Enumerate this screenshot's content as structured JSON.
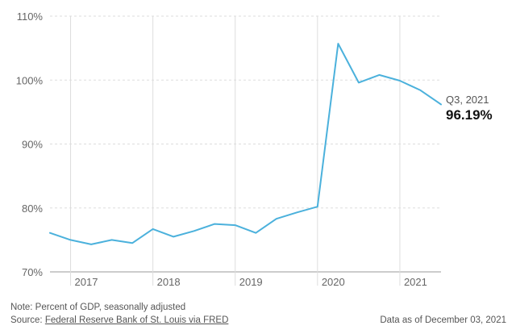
{
  "chart_data": {
    "type": "line",
    "ylim": [
      70,
      110
    ],
    "y_ticks": [
      {
        "value": 110,
        "label": "110%"
      },
      {
        "value": 100,
        "label": "100%"
      },
      {
        "value": 90,
        "label": "90%"
      },
      {
        "value": 80,
        "label": "80%"
      },
      {
        "value": 70,
        "label": "70%"
      }
    ],
    "x_ticks": [
      {
        "value": 2017,
        "label": "2017"
      },
      {
        "value": 2018,
        "label": "2018"
      },
      {
        "value": 2019,
        "label": "2019"
      },
      {
        "value": 2020,
        "label": "2020"
      },
      {
        "value": 2021,
        "label": "2021"
      }
    ],
    "xlim": [
      2016.75,
      2021.5
    ],
    "grid": true,
    "series": [
      {
        "color": "#4bb1dc",
        "points": [
          {
            "period": "2016 Q4",
            "x": 2016.75,
            "y": 76.1
          },
          {
            "period": "2017 Q1",
            "x": 2017.0,
            "y": 75.0
          },
          {
            "period": "2017 Q2",
            "x": 2017.25,
            "y": 74.3
          },
          {
            "period": "2017 Q3",
            "x": 2017.5,
            "y": 75.0
          },
          {
            "period": "2017 Q4",
            "x": 2017.75,
            "y": 74.5
          },
          {
            "period": "2018 Q1",
            "x": 2018.0,
            "y": 76.7
          },
          {
            "period": "2018 Q2",
            "x": 2018.25,
            "y": 75.5
          },
          {
            "period": "2018 Q3",
            "x": 2018.5,
            "y": 76.4
          },
          {
            "period": "2018 Q4",
            "x": 2018.75,
            "y": 77.5
          },
          {
            "period": "2019 Q1",
            "x": 2019.0,
            "y": 77.3
          },
          {
            "period": "2019 Q2",
            "x": 2019.25,
            "y": 76.1
          },
          {
            "period": "2019 Q3",
            "x": 2019.5,
            "y": 78.3
          },
          {
            "period": "2019 Q4",
            "x": 2019.75,
            "y": 79.3
          },
          {
            "period": "2020 Q1",
            "x": 2020.0,
            "y": 80.2
          },
          {
            "period": "2020 Q2",
            "x": 2020.25,
            "y": 105.7
          },
          {
            "period": "2020 Q3",
            "x": 2020.5,
            "y": 99.6
          },
          {
            "period": "2020 Q4",
            "x": 2020.75,
            "y": 100.8
          },
          {
            "period": "2021 Q1",
            "x": 2021.0,
            "y": 99.9
          },
          {
            "period": "2021 Q2",
            "x": 2021.25,
            "y": 98.4
          },
          {
            "period": "2021 Q3",
            "x": 2021.5,
            "y": 96.19
          }
        ]
      }
    ],
    "annotation": {
      "label": "Q3, 2021",
      "value": "96.19%"
    }
  },
  "footer": {
    "note": "Note: Percent of GDP, seasonally adjusted",
    "source_prefix": "Source: ",
    "source_link": "Federal Reserve Bank of St. Louis via FRED",
    "as_of": "Data as of December 03, 2021"
  },
  "colors": {
    "line": "#4bb1dc",
    "grid": "#dddddd",
    "axis": "#999999"
  }
}
